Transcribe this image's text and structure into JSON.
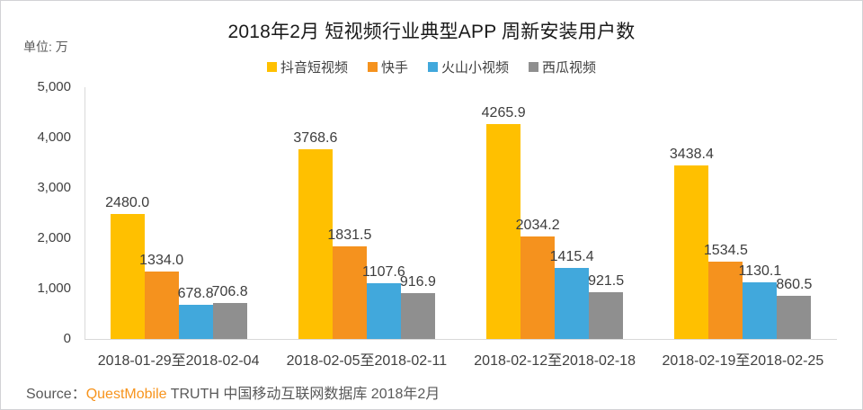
{
  "header": {
    "unit_label": "单位: 万"
  },
  "source": {
    "prefix": "Source：",
    "brand": "QuestMobile",
    "suffix": " TRUTH 中国移动互联网数据库 2018年2月"
  },
  "chart_data": {
    "type": "bar",
    "title": "2018年2月 短视频行业典型APP 周新安装用户数",
    "unit": "单位: 万",
    "categories": [
      "2018-01-29至2018-02-04",
      "2018-02-05至2018-02-11",
      "2018-02-12至2018-02-18",
      "2018-02-19至2018-02-25"
    ],
    "series": [
      {
        "name": "抖音短视频",
        "color": "#FFC000",
        "values": [
          2480.0,
          3768.6,
          4265.9,
          3438.4
        ]
      },
      {
        "name": "快手",
        "color": "#F5921E",
        "values": [
          1334.0,
          1831.5,
          2034.2,
          1534.5
        ]
      },
      {
        "name": "火山小视频",
        "color": "#41A8DC",
        "values": [
          678.8,
          1107.6,
          1415.4,
          1130.1
        ]
      },
      {
        "name": "西瓜视频",
        "color": "#8F8F8F",
        "values": [
          706.8,
          916.9,
          921.5,
          860.5
        ]
      }
    ],
    "y_ticks": [
      {
        "label": "0",
        "value": 0
      },
      {
        "label": "1,000",
        "value": 1000
      },
      {
        "label": "2,000",
        "value": 2000
      },
      {
        "label": "3,000",
        "value": 3000
      },
      {
        "label": "4,000",
        "value": 4000
      },
      {
        "label": "5,000",
        "value": 5000
      }
    ],
    "ylim": [
      0,
      5000
    ],
    "grid": false,
    "legend_position": "top",
    "value_label_decimals": 1,
    "colors": {
      "title_text": "#1A1A1A",
      "axis_text": "#404040",
      "axis_line": "#D9D9D9",
      "source_brand": "#F7941D"
    }
  }
}
